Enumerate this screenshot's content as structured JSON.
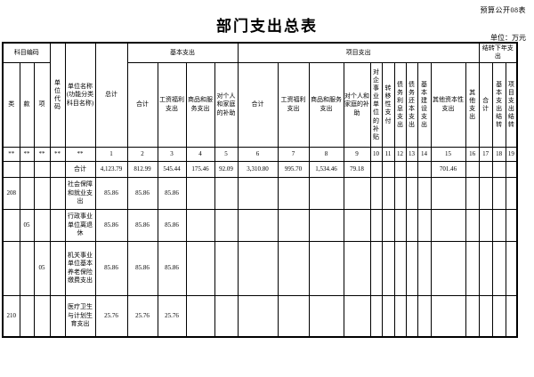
{
  "page": {
    "doc_label": "预算公开08表",
    "title": "部门支出总表",
    "unit_label": "单位：万元"
  },
  "table": {
    "header": {
      "subject_code": "科目编码",
      "cls": "类",
      "sec": "款",
      "item": "项",
      "unit_code": "单位代码",
      "unit_name": "单位名称(功能分类科目名称)",
      "grand_total": "总计",
      "basic_group": "基本支出",
      "project_group": "项目支出",
      "carryover_group": "结转下年支出",
      "basic": {
        "total": "合计",
        "wages": "工资福利支出",
        "goods": "商品和服务支出",
        "individuals": "对个人和家庭的补助"
      },
      "project": {
        "total": "合计",
        "wages": "工资福利支出",
        "goods": "商品和服务支出",
        "individuals": "对个人和家庭的补助",
        "enterprise_subsidy": "对企事业单位的补贴",
        "transfer": "转移性支付",
        "debt_interest": "债务利息支出",
        "debt_principal": "债务还本支出",
        "capital_construction": "基本建设支出",
        "other_capital": "其他资本性支出",
        "other": "其他支出"
      },
      "carryover": {
        "total": "合计",
        "basic": "基本支出结转",
        "project": "项目支出结转"
      }
    },
    "column_index_row": [
      "**",
      "**",
      "**",
      "**",
      "**",
      "1",
      "2",
      "3",
      "4",
      "5",
      "6",
      "7",
      "8",
      "9",
      "10",
      "11",
      "12",
      "13",
      "14",
      "15",
      "16",
      "17",
      "18",
      "19"
    ],
    "rows": [
      {
        "cls": "",
        "sec": "",
        "item": "",
        "unit_code": "",
        "name": "合计",
        "values": [
          "4,123.79",
          "812.99",
          "545.44",
          "175.46",
          "92.09",
          "3,310.80",
          "995.70",
          "1,534.46",
          "79.18",
          "",
          "",
          "",
          "",
          "",
          "701.46",
          "",
          "",
          "",
          ""
        ]
      },
      {
        "cls": "208",
        "sec": "",
        "item": "",
        "unit_code": "",
        "name": "社会保障和就业支出",
        "values": [
          "85.86",
          "85.86",
          "85.86",
          "",
          "",
          "",
          "",
          "",
          "",
          "",
          "",
          "",
          "",
          "",
          "",
          "",
          "",
          "",
          ""
        ]
      },
      {
        "cls": "",
        "sec": "05",
        "item": "",
        "unit_code": "",
        "name": "行政事业单位离退休",
        "values": [
          "85.86",
          "85.86",
          "85.86",
          "",
          "",
          "",
          "",
          "",
          "",
          "",
          "",
          "",
          "",
          "",
          "",
          "",
          "",
          "",
          ""
        ]
      },
      {
        "cls": "",
        "sec": "",
        "item": "05",
        "unit_code": "",
        "name": "机关事业单位基本养老保险缴费支出",
        "values": [
          "85.86",
          "85.86",
          "85.86",
          "",
          "",
          "",
          "",
          "",
          "",
          "",
          "",
          "",
          "",
          "",
          "",
          "",
          "",
          "",
          ""
        ]
      },
      {
        "cls": "210",
        "sec": "",
        "item": "",
        "unit_code": "",
        "name": "医疗卫生与计划生育支出",
        "values": [
          "25.76",
          "25.76",
          "25.76",
          "",
          "",
          "",
          "",
          "",
          "",
          "",
          "",
          "",
          "",
          "",
          "",
          "",
          "",
          "",
          ""
        ]
      }
    ]
  }
}
